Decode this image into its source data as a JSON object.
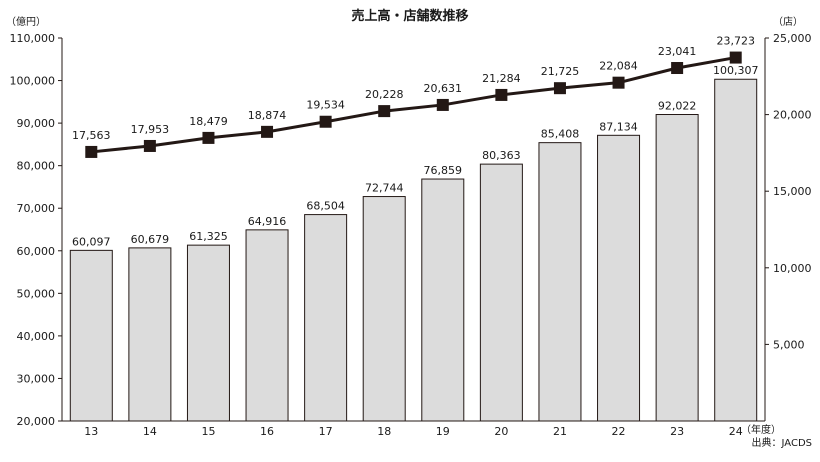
{
  "chart_data": {
    "type": "bar",
    "title": "売上高・店舗数推移",
    "categories": [
      "13",
      "14",
      "15",
      "16",
      "17",
      "18",
      "19",
      "20",
      "21",
      "22",
      "23",
      "24"
    ],
    "series": [
      {
        "name": "売上高",
        "type": "bar",
        "axis": "left",
        "values": [
          60097,
          60679,
          61325,
          64916,
          68504,
          72744,
          76859,
          80363,
          85408,
          87134,
          92022,
          100307
        ],
        "labels": [
          "60,097",
          "60,679",
          "61,325",
          "64,916",
          "68,504",
          "72,744",
          "76,859",
          "80,363",
          "85,408",
          "87,134",
          "92,022",
          "100,307"
        ],
        "color": "#dcdcdc"
      },
      {
        "name": "店舗数",
        "type": "line",
        "axis": "right",
        "values": [
          17563,
          17953,
          18479,
          18874,
          19534,
          20228,
          20631,
          21284,
          21725,
          22084,
          23041,
          23723
        ],
        "labels": [
          "17,563",
          "17,953",
          "18,479",
          "18,874",
          "19,534",
          "20,228",
          "20,631",
          "21,284",
          "21,725",
          "22,084",
          "23,041",
          "23,723"
        ],
        "color": "#231815"
      }
    ],
    "ylabel_left": "（億円）",
    "ylabel_right": "（店）",
    "xlabel": "（年度）",
    "ylim_left": [
      20000,
      110000
    ],
    "ylim_right": [
      0,
      25000
    ],
    "yticks_left": [
      "20,000",
      "30,000",
      "40,000",
      "50,000",
      "60,000",
      "70,000",
      "80,000",
      "90,000",
      "100,000",
      "110,000"
    ],
    "yticks_left_values": [
      20000,
      30000,
      40000,
      50000,
      60000,
      70000,
      80000,
      90000,
      100000,
      110000
    ],
    "yticks_right": [
      "5,000",
      "10,000",
      "15,000",
      "20,000",
      "25,000"
    ],
    "yticks_right_values": [
      5000,
      10000,
      15000,
      20000,
      25000
    ],
    "grid": false,
    "legend": "none",
    "source": "出典：JACDS"
  }
}
